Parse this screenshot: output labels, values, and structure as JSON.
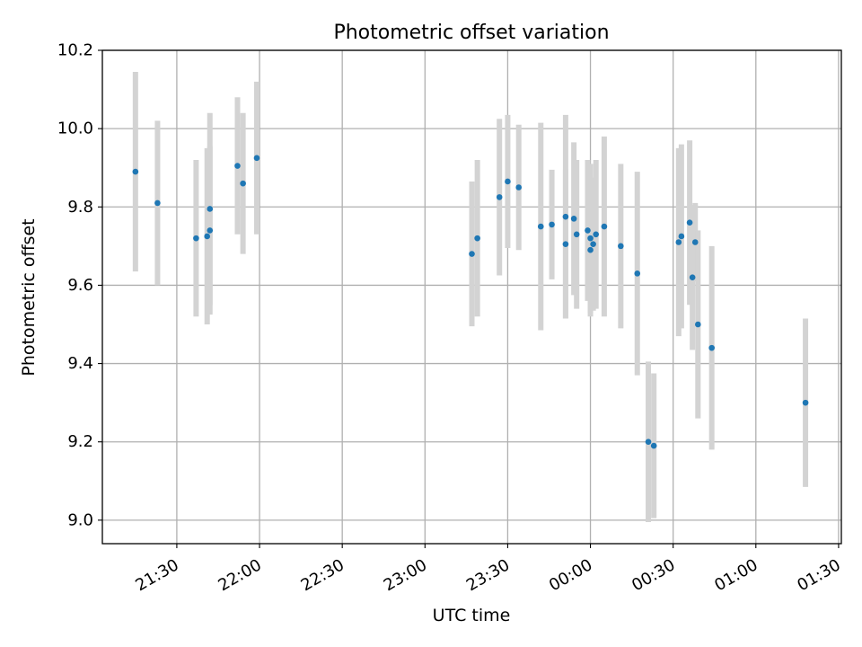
{
  "chart_data": {
    "type": "scatter",
    "title": "Photometric offset variation",
    "xlabel": "UTC time",
    "ylabel": "Photometric offset",
    "xlim": [
      "21:03",
      "01:31"
    ],
    "ylim": [
      8.94,
      10.2
    ],
    "xticks": [
      "21:30",
      "22:00",
      "22:30",
      "23:00",
      "23:30",
      "00:00",
      "00:30",
      "01:00",
      "01:30"
    ],
    "yticks": [
      "9.0",
      "9.2",
      "9.4",
      "9.6",
      "9.8",
      "10.0",
      "10.2"
    ],
    "grid": true,
    "colors": {
      "points": "#1f77b4",
      "errorbars": "#d3d3d3",
      "grid": "#b0b0b0"
    },
    "points": [
      {
        "x": "21:15",
        "y": 9.89,
        "yerr": 0.255
      },
      {
        "x": "21:23",
        "y": 9.81,
        "yerr": 0.21
      },
      {
        "x": "21:37",
        "y": 9.72,
        "yerr": 0.2
      },
      {
        "x": "21:41",
        "y": 9.725,
        "yerr": 0.225
      },
      {
        "x": "21:42",
        "y": 9.74,
        "yerr": 0.215
      },
      {
        "x": "21:42",
        "y": 9.795,
        "yerr": 0.245
      },
      {
        "x": "21:52",
        "y": 9.905,
        "yerr": 0.175
      },
      {
        "x": "21:54",
        "y": 9.86,
        "yerr": 0.18
      },
      {
        "x": "21:59",
        "y": 9.925,
        "yerr": 0.195
      },
      {
        "x": "23:17",
        "y": 9.68,
        "yerr": 0.185
      },
      {
        "x": "23:19",
        "y": 9.72,
        "yerr": 0.2
      },
      {
        "x": "23:27",
        "y": 9.825,
        "yerr": 0.2
      },
      {
        "x": "23:30",
        "y": 9.865,
        "yerr": 0.17
      },
      {
        "x": "23:34",
        "y": 9.85,
        "yerr": 0.16
      },
      {
        "x": "23:42",
        "y": 9.75,
        "yerr": 0.265
      },
      {
        "x": "23:46",
        "y": 9.755,
        "yerr": 0.14
      },
      {
        "x": "23:51",
        "y": 9.775,
        "yerr": 0.26
      },
      {
        "x": "23:51",
        "y": 9.705,
        "yerr": 0.19
      },
      {
        "x": "23:54",
        "y": 9.77,
        "yerr": 0.195
      },
      {
        "x": "23:55",
        "y": 9.73,
        "yerr": 0.19
      },
      {
        "x": "23:59",
        "y": 9.74,
        "yerr": 0.18
      },
      {
        "x": "00:00",
        "y": 9.72,
        "yerr": 0.19
      },
      {
        "x": "00:00",
        "y": 9.69,
        "yerr": 0.17
      },
      {
        "x": "00:01",
        "y": 9.705,
        "yerr": 0.17
      },
      {
        "x": "00:02",
        "y": 9.73,
        "yerr": 0.19
      },
      {
        "x": "00:05",
        "y": 9.75,
        "yerr": 0.23
      },
      {
        "x": "00:11",
        "y": 9.7,
        "yerr": 0.21
      },
      {
        "x": "00:17",
        "y": 9.63,
        "yerr": 0.26
      },
      {
        "x": "00:21",
        "y": 9.2,
        "yerr": 0.205
      },
      {
        "x": "00:23",
        "y": 9.19,
        "yerr": 0.185
      },
      {
        "x": "00:32",
        "y": 9.71,
        "yerr": 0.24
      },
      {
        "x": "00:33",
        "y": 9.725,
        "yerr": 0.235
      },
      {
        "x": "00:36",
        "y": 9.76,
        "yerr": 0.21
      },
      {
        "x": "00:37",
        "y": 9.62,
        "yerr": 0.185
      },
      {
        "x": "00:38",
        "y": 9.71,
        "yerr": 0.1
      },
      {
        "x": "00:39",
        "y": 9.5,
        "yerr": 0.24
      },
      {
        "x": "00:44",
        "y": 9.44,
        "yerr": 0.26
      },
      {
        "x": "01:18",
        "y": 9.3,
        "yerr": 0.215
      }
    ]
  }
}
